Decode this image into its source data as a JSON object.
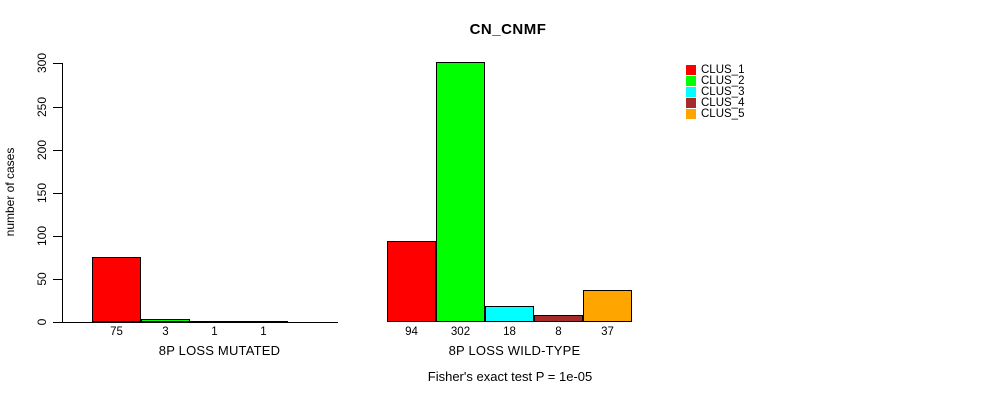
{
  "title": "CN_CNMF",
  "chart_data": {
    "type": "bar",
    "title": "CN_CNMF",
    "ylabel": "number of cases",
    "xlabel": "",
    "ylim": [
      0,
      300
    ],
    "y_ticks": [
      0,
      50,
      100,
      150,
      200,
      250,
      300
    ],
    "grid": false,
    "legend_position": "right",
    "clusters": [
      {
        "name": "CLUS_1",
        "color": "#ff0000"
      },
      {
        "name": "CLUS_2",
        "color": "#00ff00"
      },
      {
        "name": "CLUS_3",
        "color": "#00ffff"
      },
      {
        "name": "CLUS_4",
        "color": "#a52a2a"
      },
      {
        "name": "CLUS_5",
        "color": "#ffa500"
      }
    ],
    "groups": [
      {
        "label": "8P LOSS MUTATED",
        "values": [
          75,
          3,
          1,
          1,
          null
        ]
      },
      {
        "label": "8P LOSS WILD-TYPE",
        "values": [
          94,
          302,
          18,
          8,
          37
        ]
      }
    ],
    "bar_value_labels_shown": true,
    "footer": "Fisher's exact test P = 1e-05"
  }
}
